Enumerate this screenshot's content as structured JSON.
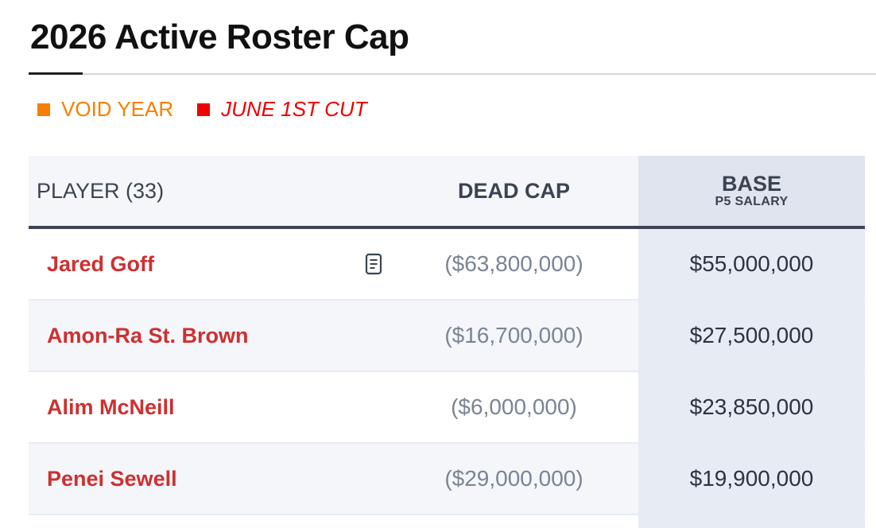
{
  "page": {
    "title": "2026 Active Roster Cap"
  },
  "legend": [
    {
      "label": "VOID YEAR",
      "color": "#f77f00",
      "italic": false
    },
    {
      "label": "JUNE 1ST CUT",
      "color": "#ee0000",
      "italic": true
    }
  ],
  "table": {
    "headers": {
      "player": "PLAYER (33)",
      "dead_cap": "DEAD CAP",
      "base_main": "BASE",
      "base_sub": "P5 SALARY"
    },
    "rows": [
      {
        "player": "Jared Goff",
        "dead_cap": "($63,800,000)",
        "base": "$55,000,000",
        "has_note": true,
        "note_icon": "document-icon"
      },
      {
        "player": "Amon-Ra St. Brown",
        "dead_cap": "($16,700,000)",
        "base": "$27,500,000",
        "has_note": false
      },
      {
        "player": "Alim McNeill",
        "dead_cap": "($6,000,000)",
        "base": "$23,850,000",
        "has_note": false
      },
      {
        "player": "Penei Sewell",
        "dead_cap": "($29,000,000)",
        "base": "$19,900,000",
        "has_note": false
      }
    ]
  },
  "colors": {
    "player_name": "#cf2f30",
    "dead_cap_text": "#7a8496",
    "base_text": "#2d3340",
    "header_text": "#3b4352",
    "base_column_bg": "#e6ebf4"
  }
}
